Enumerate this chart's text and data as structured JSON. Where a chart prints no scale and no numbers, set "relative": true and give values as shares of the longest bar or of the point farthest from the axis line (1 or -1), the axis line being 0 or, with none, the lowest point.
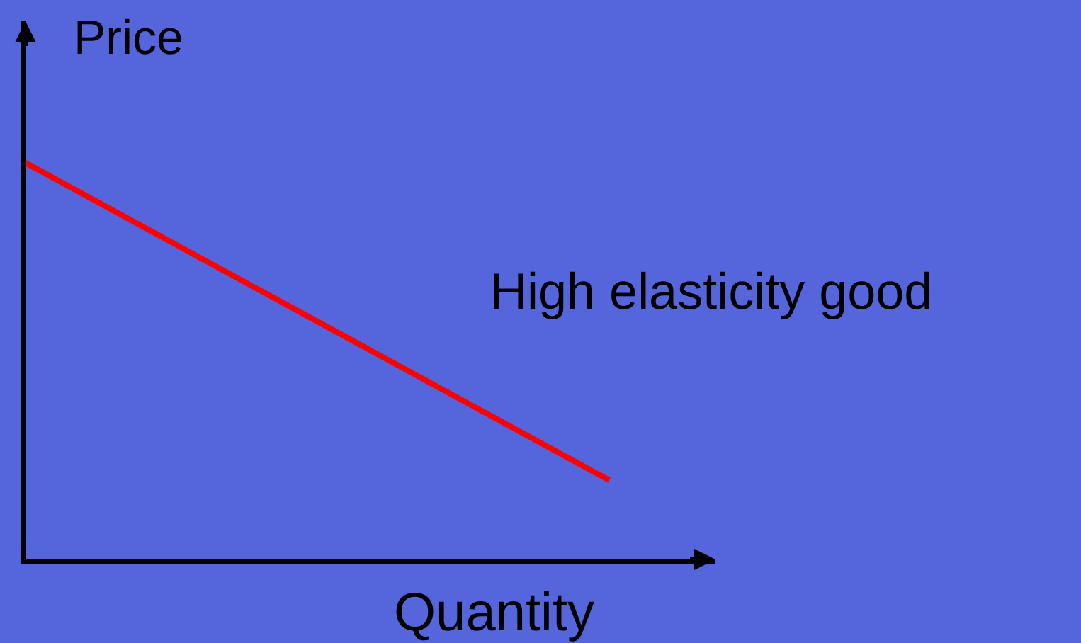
{
  "chart_data": {
    "type": "line",
    "relative": true,
    "xlabel": "Quantity",
    "ylabel": "Price",
    "categories": [
      null,
      null
    ],
    "series": [
      {
        "color": "#ff0000",
        "values": [
          1,
          0.2
        ]
      }
    ],
    "annotations": [
      "High elasticity good"
    ],
    "legend": false
  }
}
